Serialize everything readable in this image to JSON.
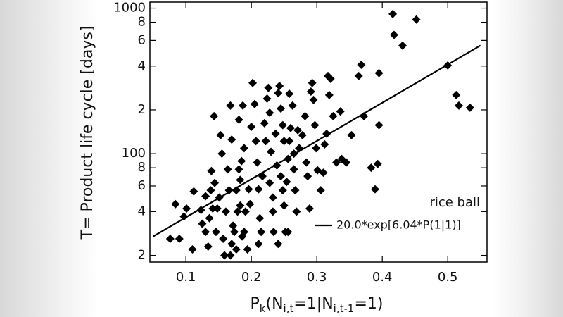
{
  "chart_data": {
    "type": "scatter",
    "xlabel": [
      "P",
      "k",
      "(N",
      "i,t",
      "=1|N",
      "i,t-1",
      "=1)"
    ],
    "ylabel": "T= Product life cycle [days]",
    "xlim": [
      0.045,
      0.56
    ],
    "ylim": [
      18,
      1100
    ],
    "log_y": true,
    "xticks": [
      0.1,
      0.2,
      0.3,
      0.4,
      0.5
    ],
    "yticks": [
      {
        "value": 20,
        "label": "2"
      },
      {
        "value": 40,
        "label": "4"
      },
      {
        "value": 60,
        "label": "6"
      },
      {
        "value": 80,
        "label": "8"
      },
      100,
      {
        "value": 200,
        "label": "2"
      },
      {
        "value": 400,
        "label": "4"
      },
      {
        "value": 600,
        "label": "6"
      },
      {
        "value": 800,
        "label": "8"
      },
      1000
    ],
    "series": [
      {
        "name": "rice ball",
        "type": "scatter",
        "color": "#000000",
        "x": [
          0.076,
          0.09,
          0.084,
          0.112,
          0.101,
          0.11,
          0.097,
          0.123,
          0.13,
          0.125,
          0.136,
          0.141,
          0.139,
          0.143,
          0.13,
          0.134,
          0.148,
          0.144,
          0.151,
          0.155,
          0.157,
          0.159,
          0.153,
          0.138,
          0.168,
          0.17,
          0.164,
          0.166,
          0.161,
          0.168,
          0.177,
          0.174,
          0.172,
          0.179,
          0.177,
          0.181,
          0.185,
          0.187,
          0.181,
          0.183,
          0.189,
          0.191,
          0.194,
          0.196,
          0.198,
          0.186,
          0.183,
          0.17,
          0.189,
          0.202,
          0.205,
          0.207,
          0.2,
          0.209,
          0.211,
          0.213,
          0.215,
          0.211,
          0.217,
          0.22,
          0.222,
          0.224,
          0.226,
          0.228,
          0.23,
          0.228,
          0.233,
          0.234,
          0.233,
          0.237,
          0.239,
          0.241,
          0.243,
          0.245,
          0.248,
          0.25,
          0.245,
          0.248,
          0.25,
          0.252,
          0.241,
          0.254,
          0.256,
          0.258,
          0.26,
          0.263,
          0.258,
          0.265,
          0.267,
          0.269,
          0.256,
          0.271,
          0.273,
          0.278,
          0.282,
          0.284,
          0.286,
          0.289,
          0.291,
          0.293,
          0.295,
          0.297,
          0.299,
          0.301,
          0.306,
          0.31,
          0.312,
          0.315,
          0.317,
          0.319,
          0.321,
          0.325,
          0.33,
          0.336,
          0.338,
          0.345,
          0.353,
          0.364,
          0.368,
          0.372,
          0.383,
          0.389,
          0.393,
          0.395,
          0.395,
          0.416,
          0.418,
          0.431,
          0.452,
          0.5,
          0.513,
          0.517,
          0.534,
          0.265,
          0.146
        ],
        "values": [
          26,
          26,
          45,
          55,
          42,
          22,
          37,
          41,
          51,
          33,
          36,
          42,
          76,
          181,
          29,
          23,
          42,
          63,
          50,
          100,
          26,
          20,
          134,
          56,
          214,
          125,
          78,
          56,
          40,
          20,
          22,
          29,
          32,
          40,
          56,
          78,
          89,
          214,
          171,
          66,
          29,
          40,
          22,
          57,
          45,
          27,
          44,
          24,
          109,
          306,
          219,
          122,
          153,
          87,
          57,
          36,
          29,
          24,
          70,
          162,
          122,
          239,
          283,
          191,
          103,
          63,
          40,
          29,
          50,
          137,
          83,
          261,
          292,
          204,
          157,
          122,
          70,
          56,
          44,
          29,
          24,
          64,
          92,
          122,
          150,
          214,
          258,
          78,
          56,
          40,
          29,
          145,
          109,
          134,
          181,
          87,
          70,
          42,
          267,
          306,
          234,
          157,
          109,
          77,
          56,
          74,
          116,
          137,
          342,
          253,
          327,
          181,
          87,
          195,
          92,
          87,
          134,
          342,
          408,
          181,
          80,
          57,
          85,
          157,
          358,
          912,
          655,
          553,
          835,
          404,
          253,
          214,
          207,
          100,
          29
        ]
      },
      {
        "name": "20.0*exp[6.04*P(1|1)]",
        "type": "line",
        "color": "#000000",
        "x": [
          0.05,
          0.55
        ],
        "values": [
          27,
          554
        ]
      }
    ]
  }
}
